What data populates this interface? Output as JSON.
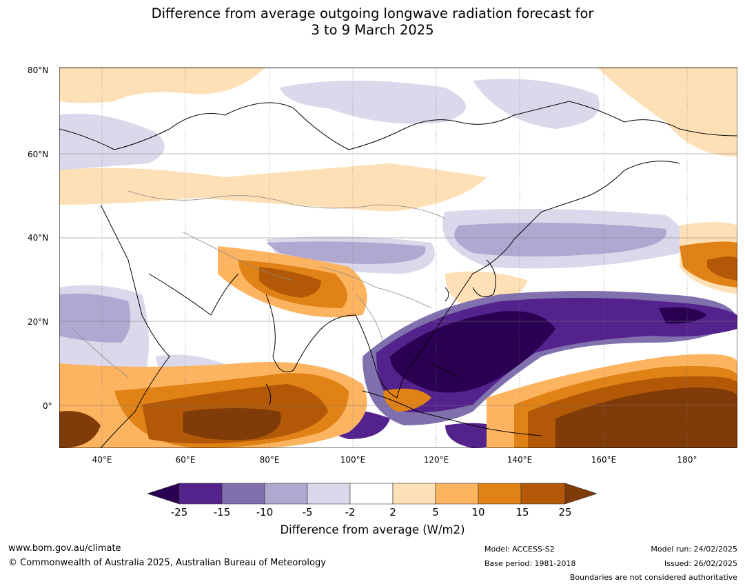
{
  "title": {
    "line1": "Difference from average outgoing longwave radiation forecast for",
    "line2": "3 to 9 March 2025"
  },
  "map": {
    "lat_labels": [
      "80°N",
      "60°N",
      "40°N",
      "20°N",
      "0°"
    ],
    "lon_labels": [
      "40°E",
      "60°E",
      "80°E",
      "100°E",
      "120°E",
      "140°E",
      "160°E",
      "180°"
    ]
  },
  "colorbar": {
    "ticks": [
      "-25",
      "-15",
      "-10",
      "-5",
      "-2",
      "2",
      "5",
      "10",
      "15",
      "25"
    ],
    "colors": {
      "lt_-25": "#2a0052",
      "-25_-15": "#54228c",
      "-15_-10": "#8070ad",
      "-10_-5": "#b1a8d2",
      "-5_-2": "#dad8ea",
      "-2_2": "#ffffff",
      "2_5": "#fee0b6",
      "5_10": "#fdb461",
      "10_15": "#e08215",
      "15_25": "#b35806",
      "gt_25": "#7f3b08"
    },
    "label": "Difference from average (W/m2)"
  },
  "footer": {
    "website": "www.bom.gov.au/climate",
    "copyright": "© Commonwealth of Australia 2025, Australian Bureau of Meteorology",
    "model": "Model: ACCESS-S2",
    "base_period": "Base period: 1981-2018",
    "model_run": "Model run: 24/02/2025",
    "issued": "Issued: 26/02/2025",
    "disclaimer": "Boundaries are not considered authoritative"
  }
}
